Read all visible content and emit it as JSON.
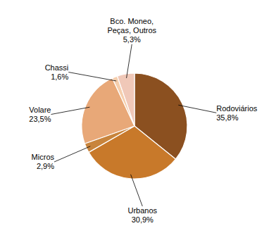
{
  "chart_data": {
    "type": "pie",
    "categories": [
      "Rodoviários",
      "Urbanos",
      "Micros",
      "Volare",
      "Chassi",
      "Bco. Moneo,\nPeças, Outros"
    ],
    "values": [
      35.8,
      30.9,
      2.9,
      23.5,
      1.6,
      5.3
    ],
    "value_labels": [
      "35,8%",
      "30,9%",
      "2,9%",
      "23,5%",
      "1,6%",
      "5,3%"
    ],
    "colors": [
      "#8B5020",
      "#C8792A",
      "#C8843C",
      "#E8A878",
      "#F5CEAD",
      "#F0C8B8"
    ],
    "data_labels": true
  }
}
